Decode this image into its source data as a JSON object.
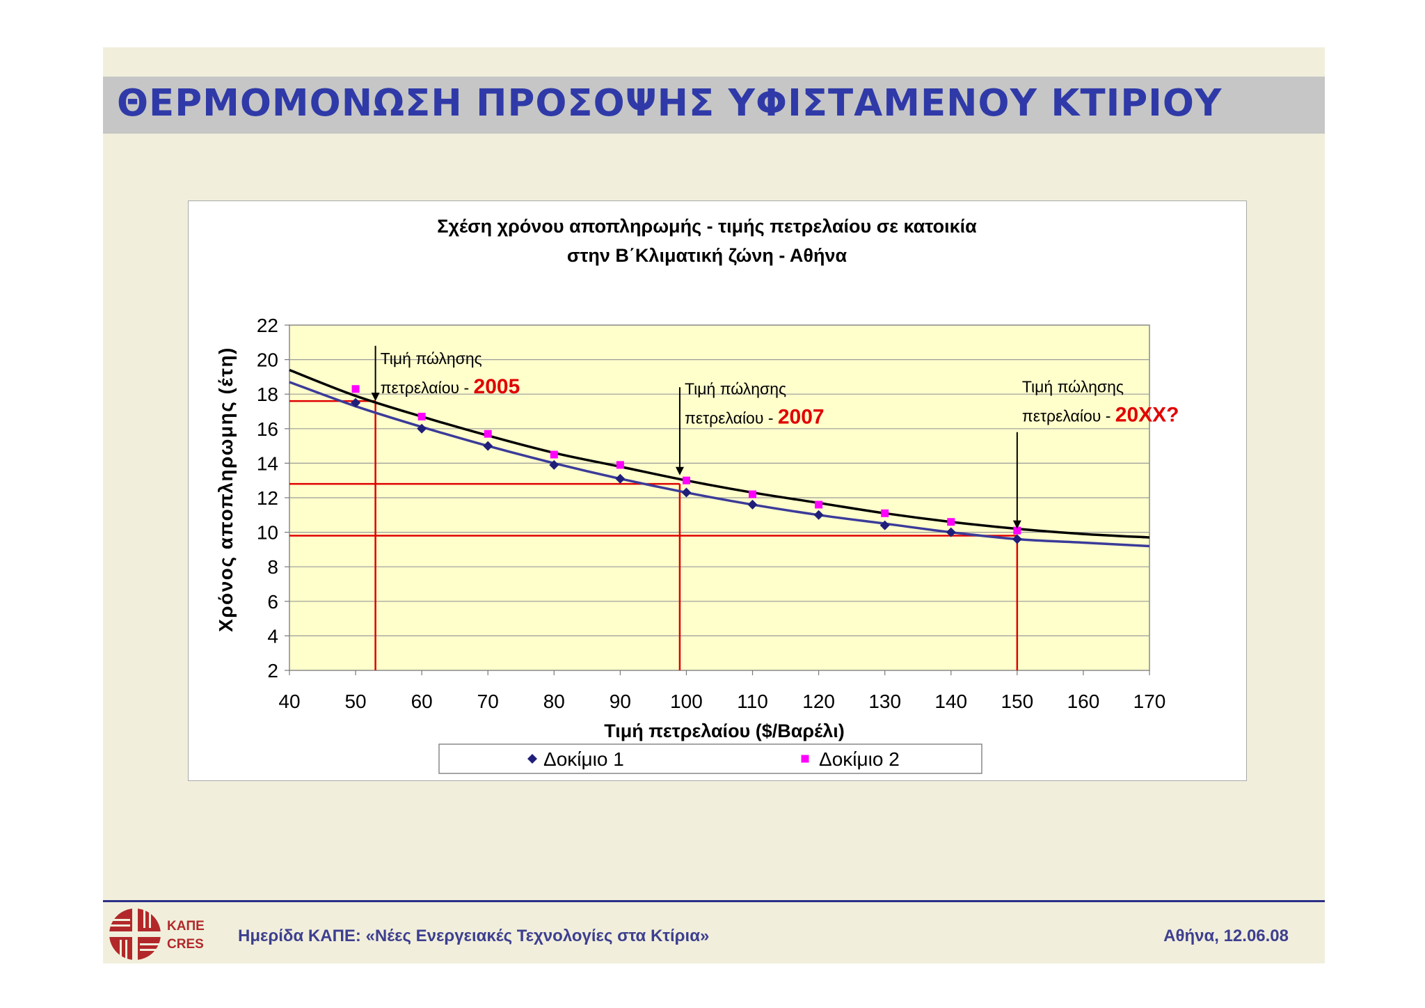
{
  "slide": {
    "title": "ΘΕΡΜΟΜΟΝΩΣΗ ΠΡΟΣΟΨΗΣ ΥΦΙΣΤΑΜΕΝΟΥ ΚΤΙΡΙΟΥ",
    "footer_left": "Ημερίδα ΚΑΠΕ: «Νέες Ενεργειακές Τεχνολογίες στα Κτίρια»",
    "footer_right": "Αθήνα, 12.06.08",
    "logo_text_top": "ΚΑΠΕ",
    "logo_text_bottom": "CRES"
  },
  "chart_data": {
    "type": "scatter",
    "title_line1": "Σχέση χρόνου αποπληρωμής - τιμής πετρελαίου σε κατοικία",
    "title_line2": "στην Β΄Κλιματική ζώνη - Αθήνα",
    "xlabel": "Τιμή πετρελαίου ($/Βαρέλι)",
    "ylabel": "Χρόνος αποπληρωμης (έτη)",
    "xlim": [
      40,
      170
    ],
    "ylim": [
      2,
      22
    ],
    "xticks": [
      40,
      50,
      60,
      70,
      80,
      90,
      100,
      110,
      120,
      130,
      140,
      150,
      160,
      170
    ],
    "yticks": [
      2,
      4,
      6,
      8,
      10,
      12,
      14,
      16,
      18,
      20,
      22
    ],
    "grid": true,
    "legend_position": "bottom",
    "series": [
      {
        "name": "Δοκίμιο 1",
        "marker": "diamond",
        "color": "#1f1f7a",
        "x": [
          50,
          60,
          70,
          80,
          90,
          100,
          110,
          120,
          130,
          140,
          150
        ],
        "y": [
          17.5,
          16.0,
          15.0,
          13.9,
          13.1,
          12.3,
          11.6,
          11.0,
          10.4,
          10.0,
          9.6
        ]
      },
      {
        "name": "Δοκίμιο 2",
        "marker": "square",
        "color": "#ff00ff",
        "x": [
          50,
          60,
          70,
          80,
          90,
          100,
          110,
          120,
          130,
          140,
          150
        ],
        "y": [
          18.3,
          16.7,
          15.7,
          14.5,
          13.9,
          13.0,
          12.2,
          11.6,
          11.1,
          10.6,
          10.1
        ]
      }
    ],
    "trendlines": [
      {
        "name": "trend-series-2",
        "color": "#000000",
        "x": [
          40,
          50,
          60,
          70,
          80,
          90,
          100,
          110,
          120,
          130,
          140,
          150,
          160,
          170
        ],
        "y": [
          19.4,
          17.9,
          16.7,
          15.6,
          14.6,
          13.8,
          13.0,
          12.3,
          11.7,
          11.1,
          10.6,
          10.2,
          9.9,
          9.7
        ]
      },
      {
        "name": "trend-series-1",
        "color": "#3b3b9a",
        "x": [
          40,
          50,
          60,
          70,
          80,
          90,
          100,
          110,
          120,
          130,
          140,
          150,
          160,
          170
        ],
        "y": [
          18.7,
          17.3,
          16.1,
          15.0,
          14.0,
          13.1,
          12.3,
          11.6,
          11.0,
          10.5,
          10.0,
          9.6,
          9.4,
          9.2
        ]
      }
    ],
    "reference_lines": {
      "color": "#e00000",
      "vertical": [
        {
          "x": 53,
          "y_from": 2,
          "y_to": 17.6
        },
        {
          "x": 99,
          "y_from": 2,
          "y_to": 12.8
        },
        {
          "x": 150,
          "y_from": 2,
          "y_to": 9.8
        }
      ],
      "horizontal": [
        {
          "y": 17.6,
          "x_from": 40,
          "x_to": 53
        },
        {
          "y": 12.8,
          "x_from": 40,
          "x_to": 99
        },
        {
          "y": 9.8,
          "x_from": 40,
          "x_to": 150
        }
      ]
    },
    "annotations": [
      {
        "line1": "Τιμή πώλησης",
        "line2": "πετρελαίου - ",
        "year": "2005",
        "arrow_x": 53,
        "arrow_y_top": 20.8,
        "arrow_y_tip": 17.6
      },
      {
        "line1": "Τιμή πώλησης",
        "line2": "πετρελαίου - ",
        "year": "2007",
        "arrow_x": 99,
        "arrow_y_top": 18.4,
        "arrow_y_tip": 13.3
      },
      {
        "line1": "Τιμή πώλησης",
        "line2": "πετρελαίου - ",
        "year": "20ΧΧ?",
        "arrow_x": 150,
        "arrow_y_top": 15.8,
        "arrow_y_tip": 10.2
      }
    ]
  }
}
